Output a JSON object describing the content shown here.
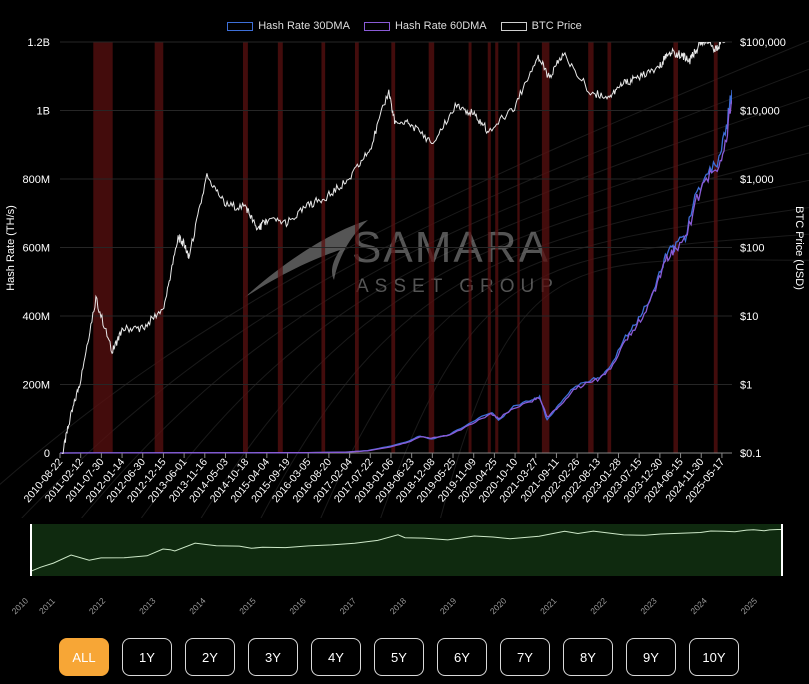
{
  "legend": [
    {
      "label": "Hash Rate 30DMA",
      "color": "#3d6fd8"
    },
    {
      "label": "Hash Rate 60DMA",
      "color": "#8a5bd6"
    },
    {
      "label": "BTC Price",
      "color": "#cfcfcf"
    }
  ],
  "watermark": {
    "line1": "SAMARA",
    "line2": "ASSET GROUP"
  },
  "range_buttons": [
    "ALL",
    "1Y",
    "2Y",
    "3Y",
    "4Y",
    "5Y",
    "6Y",
    "7Y",
    "8Y",
    "9Y",
    "10Y"
  ],
  "active_range": "ALL",
  "colors": {
    "accent": "#f7a636",
    "navigator_fill": "#0f2a0f",
    "halving_band": "#5a1010"
  },
  "chart_data": {
    "type": "line",
    "title": "",
    "x_tick_labels": [
      "2010-08-22",
      "2011-02-12",
      "2011-07-30",
      "2012-01-14",
      "2012-06-30",
      "2012-12-15",
      "2013-06-01",
      "2013-11-16",
      "2014-05-03",
      "2014-10-18",
      "2015-04-04",
      "2015-09-19",
      "2016-03-05",
      "2016-08-20",
      "2017-02-04",
      "2017-07-22",
      "2018-01-06",
      "2018-06-23",
      "2018-12-08",
      "2019-05-25",
      "2019-11-09",
      "2020-04-25",
      "2020-10-10",
      "2021-03-27",
      "2021-09-11",
      "2022-02-26",
      "2022-08-13",
      "2023-01-28",
      "2023-07-15",
      "2023-12-30",
      "2024-06-15",
      "2024-11-30",
      "2025-05-17"
    ],
    "y_left": {
      "label": "Hash Rate (TH/s)",
      "ticks": [
        "0",
        "200M",
        "400M",
        "600M",
        "800M",
        "1B",
        "1.2B"
      ],
      "range": [
        0,
        1200000000
      ]
    },
    "y_right": {
      "label": "BTC Price (USD)",
      "scale": "log",
      "ticks": [
        "$0.1",
        "$1",
        "$10",
        "$100",
        "$1,000",
        "$10,000",
        "$100,000"
      ],
      "range": [
        0.1,
        100000
      ]
    },
    "series": [
      {
        "name": "Hash Rate 30DMA",
        "axis": "left",
        "color": "#3d6fd8",
        "x": [
          "2010-08-22",
          "2016-01-01",
          "2017-01-01",
          "2017-07-01",
          "2018-01-01",
          "2018-06-01",
          "2018-09-01",
          "2018-12-01",
          "2019-05-01",
          "2019-11-01",
          "2020-04-01",
          "2020-06-01",
          "2020-10-01",
          "2021-03-01",
          "2021-05-01",
          "2021-07-01",
          "2021-10-01",
          "2022-02-01",
          "2022-06-01",
          "2022-09-01",
          "2022-12-01",
          "2023-04-01",
          "2023-07-01",
          "2023-10-01",
          "2024-01-01",
          "2024-03-01",
          "2024-05-01",
          "2024-08-01",
          "2024-11-01",
          "2025-02-01",
          "2025-05-01",
          "2025-07-01",
          "2025-08-15"
        ],
        "values": [
          0,
          1000000,
          2500000,
          7000000,
          20000000,
          35000000,
          50000000,
          40000000,
          55000000,
          90000000,
          120000000,
          95000000,
          135000000,
          155000000,
          165000000,
          95000000,
          140000000,
          190000000,
          210000000,
          220000000,
          250000000,
          340000000,
          380000000,
          440000000,
          520000000,
          580000000,
          600000000,
          630000000,
          760000000,
          810000000,
          850000000,
          950000000,
          1060000000
        ]
      },
      {
        "name": "Hash Rate 60DMA",
        "axis": "left",
        "color": "#8a5bd6",
        "x": [
          "2010-08-22",
          "2016-01-01",
          "2017-01-01",
          "2017-07-01",
          "2018-01-01",
          "2018-06-01",
          "2018-09-01",
          "2018-12-01",
          "2019-05-01",
          "2019-11-01",
          "2020-04-01",
          "2020-06-01",
          "2020-10-01",
          "2021-03-01",
          "2021-05-01",
          "2021-07-01",
          "2021-10-01",
          "2022-02-01",
          "2022-06-01",
          "2022-09-01",
          "2022-12-01",
          "2023-04-01",
          "2023-07-01",
          "2023-10-01",
          "2024-01-01",
          "2024-03-01",
          "2024-05-01",
          "2024-08-01",
          "2024-11-01",
          "2025-02-01",
          "2025-05-01",
          "2025-07-01",
          "2025-08-15"
        ],
        "values": [
          0,
          900000,
          2300000,
          6500000,
          18000000,
          32000000,
          47000000,
          44000000,
          52000000,
          86000000,
          115000000,
          100000000,
          130000000,
          152000000,
          162000000,
          105000000,
          132000000,
          185000000,
          205000000,
          216000000,
          245000000,
          330000000,
          372000000,
          430000000,
          508000000,
          570000000,
          595000000,
          622000000,
          745000000,
          800000000,
          840000000,
          930000000,
          1030000000
        ]
      },
      {
        "name": "BTC Price",
        "axis": "right",
        "color": "#e8e8e8",
        "x": [
          "2010-08-22",
          "2010-11-01",
          "2011-02-01",
          "2011-06-10",
          "2011-10-20",
          "2012-01-14",
          "2012-06-30",
          "2012-12-15",
          "2013-04-10",
          "2013-06-01",
          "2013-07-05",
          "2013-11-30",
          "2014-05-03",
          "2014-10-18",
          "2015-01-14",
          "2015-04-04",
          "2015-09-19",
          "2016-03-05",
          "2016-08-20",
          "2017-02-04",
          "2017-07-22",
          "2017-12-17",
          "2018-02-06",
          "2018-06-23",
          "2018-12-15",
          "2019-06-26",
          "2019-11-09",
          "2020-03-12",
          "2020-10-10",
          "2021-04-14",
          "2021-07-20",
          "2021-11-10",
          "2022-06-18",
          "2022-11-21",
          "2023-03-15",
          "2023-07-15",
          "2023-12-30",
          "2024-03-14",
          "2024-06-15",
          "2024-09-06",
          "2024-11-30",
          "2025-01-20",
          "2025-04-08",
          "2025-05-17",
          "2025-07-14",
          "2025-08-15"
        ],
        "values": [
          0.065,
          0.26,
          1.1,
          18,
          3.0,
          6.5,
          6.7,
          13.5,
          140,
          110,
          70,
          1100,
          420,
          380,
          180,
          255,
          230,
          410,
          580,
          1010,
          2750,
          19000,
          7000,
          6200,
          3300,
          12500,
          8800,
          5000,
          11300,
          63000,
          30000,
          67500,
          18500,
          15800,
          24800,
          30500,
          42000,
          72000,
          66000,
          54000,
          97000,
          106000,
          77000,
          103000,
          120000,
          118000
        ]
      }
    ],
    "halving_bands": [
      [
        "2011-05-20",
        "2011-10-25"
      ],
      [
        "2012-10-01",
        "2012-12-10"
      ],
      [
        "2014-09-20",
        "2014-10-30"
      ],
      [
        "2015-07-01",
        "2015-08-10"
      ],
      [
        "2016-06-20",
        "2016-07-20"
      ],
      [
        "2017-03-20",
        "2017-04-20"
      ],
      [
        "2018-01-10",
        "2018-02-10"
      ],
      [
        "2018-11-10",
        "2018-12-25"
      ],
      [
        "2019-10-01",
        "2019-10-25"
      ],
      [
        "2020-03-05",
        "2020-03-30"
      ],
      [
        "2020-05-05",
        "2020-05-30"
      ],
      [
        "2020-11-01",
        "2020-11-20"
      ],
      [
        "2021-05-20",
        "2021-07-20"
      ],
      [
        "2022-06-01",
        "2022-07-15"
      ],
      [
        "2022-11-05",
        "2022-12-05"
      ],
      [
        "2024-04-25",
        "2024-06-01"
      ],
      [
        "2025-03-20",
        "2025-04-20"
      ]
    ],
    "navigator": {
      "year_labels": [
        "2010",
        "2011",
        "2012",
        "2013",
        "2014",
        "2015",
        "2016",
        "2017",
        "2018",
        "2019",
        "2020",
        "2021",
        "2022",
        "2023",
        "2024",
        "2025"
      ]
    },
    "grid": true,
    "legend_position": "top-center"
  }
}
